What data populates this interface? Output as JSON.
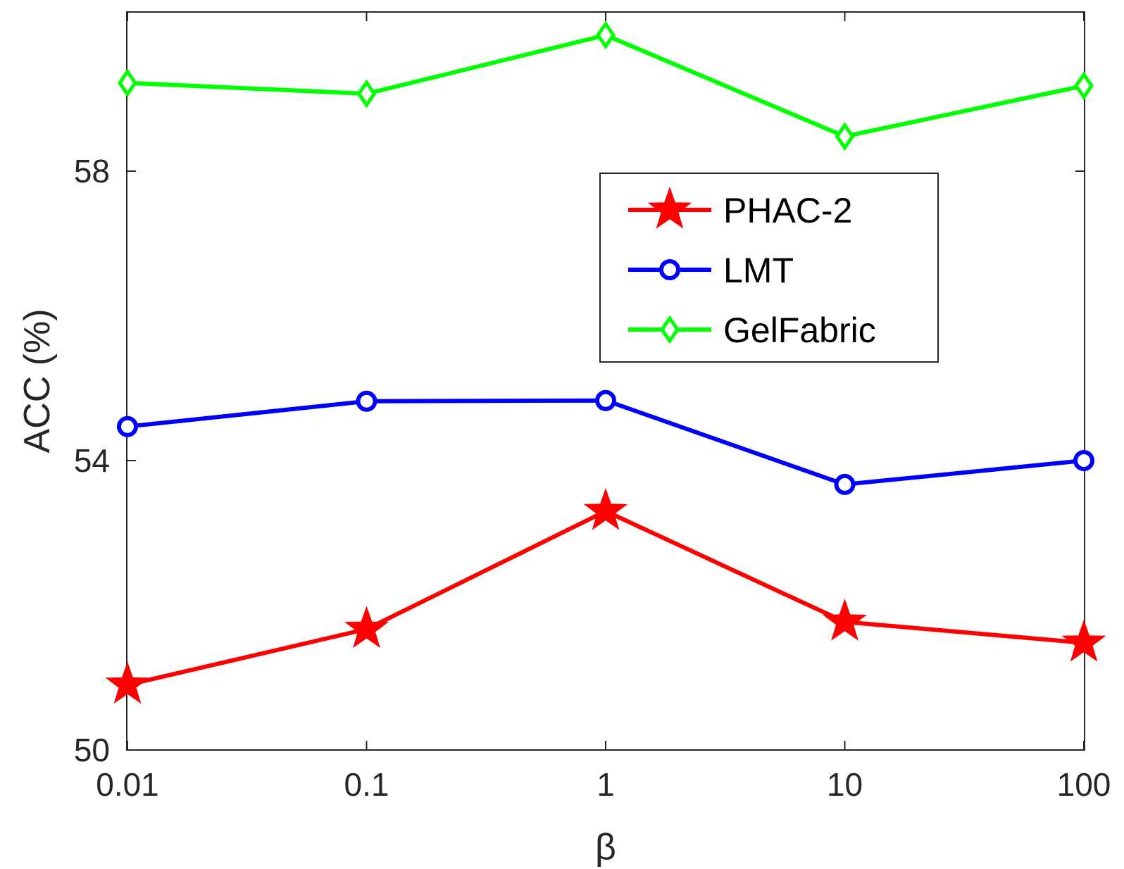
{
  "chart_data": {
    "type": "line",
    "categories": [
      "0.01",
      "0.1",
      "1",
      "10",
      "100"
    ],
    "xlabel": "β",
    "ylabel": "ACC (%)",
    "ylim": [
      50,
      60.2
    ],
    "yticks": [
      "50",
      "54",
      "58"
    ],
    "grid": false,
    "legend_position": "center-right",
    "series": [
      {
        "name": "PHAC-2",
        "values": [
          50.9,
          51.67,
          53.3,
          51.77,
          51.48
        ],
        "color": "#ff0000",
        "marker": "star"
      },
      {
        "name": "LMT",
        "values": [
          54.47,
          54.82,
          54.83,
          53.67,
          54.0
        ],
        "color": "#0000ff",
        "marker": "circle"
      },
      {
        "name": "GelFabric",
        "values": [
          59.22,
          59.07,
          59.88,
          58.48,
          59.18
        ],
        "color": "#00ff00",
        "marker": "diamond"
      }
    ]
  }
}
